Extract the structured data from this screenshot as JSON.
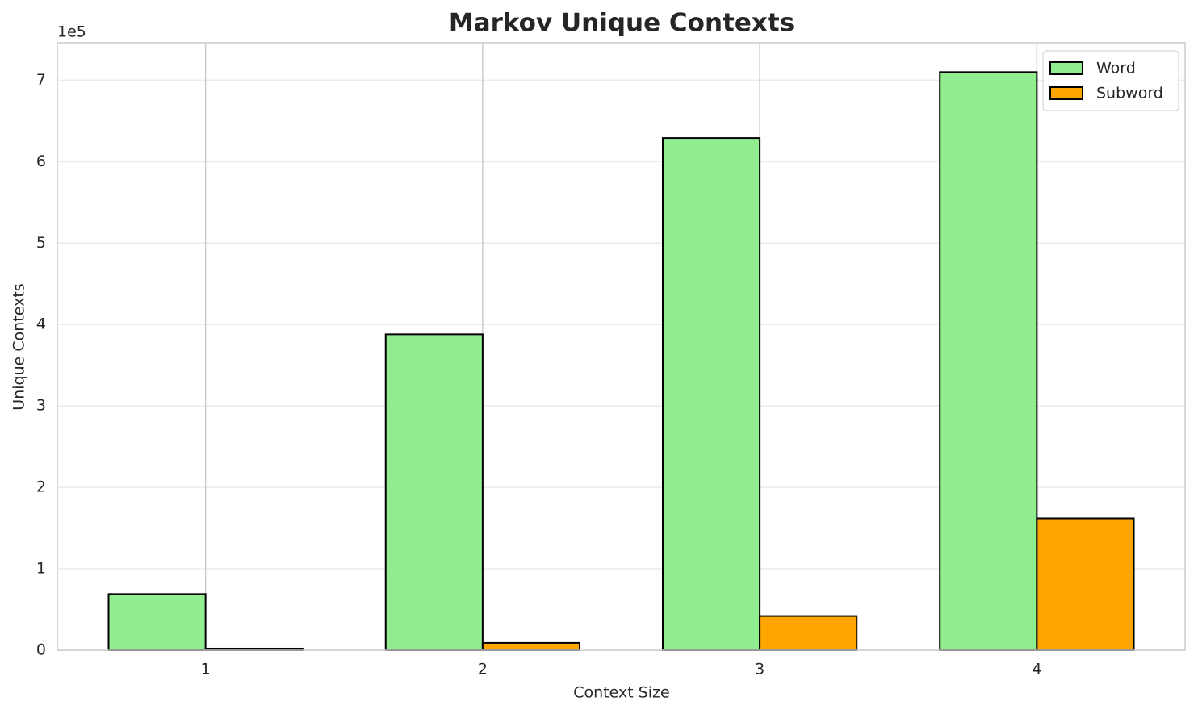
{
  "chart_data": {
    "type": "bar",
    "title": "Markov Unique Contexts",
    "xlabel": "Context Size",
    "ylabel": "Unique Contexts",
    "y_offset_label": "1e5",
    "categories": [
      "1",
      "2",
      "3",
      "4"
    ],
    "series": [
      {
        "name": "Word",
        "color": "#90ee90",
        "values": [
          0.69,
          3.88,
          6.29,
          7.1
        ]
      },
      {
        "name": "Subword",
        "color": "#ffa500",
        "values": [
          0.02,
          0.09,
          0.42,
          1.62
        ]
      }
    ],
    "ylim": [
      0,
      7.46
    ],
    "yticks": [
      0,
      1,
      2,
      3,
      4,
      5,
      6,
      7
    ],
    "grid": true,
    "legend": "upper right"
  }
}
